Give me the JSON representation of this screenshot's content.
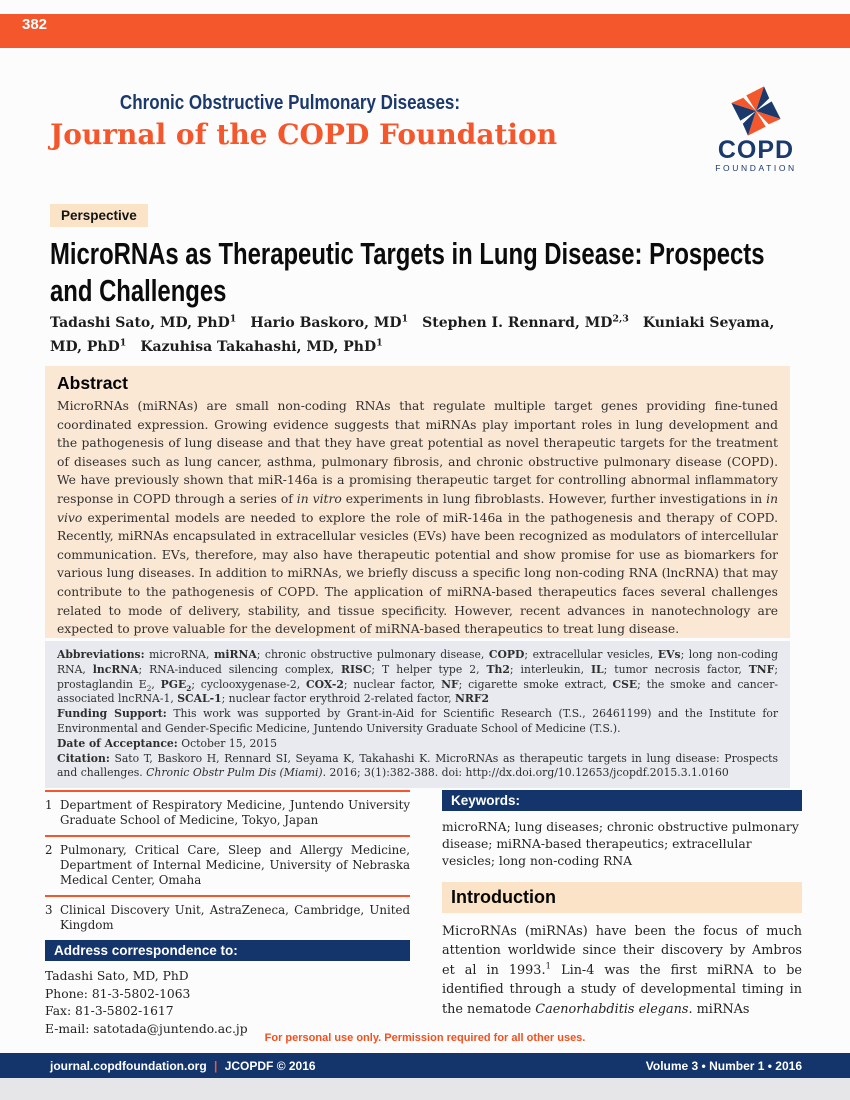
{
  "theme": {
    "orange": "#F4572B",
    "navy": "#1B3A6B",
    "navybar": "#14356B",
    "peach": "#FAE7D4",
    "peach2": "#FAE3C7",
    "metabg": "#E8EAEF",
    "red": "#F2501F"
  },
  "page": {
    "number": "382",
    "permission_notice": "For personal use only. Permission required for all other uses.",
    "footer": {
      "site": "journal.copdfoundation.org",
      "separator": "|",
      "copyright": "JCOPDF © 2016",
      "volume_info": "Volume 3 • Number 1 • 2016"
    }
  },
  "header": {
    "series_title": "Chronic Obstructive Pulmonary Diseases:",
    "journal_title": "Journal of the COPD Foundation",
    "logo": {
      "name": "COPD",
      "subname": "FOUNDATION",
      "icon": "pinwheel-icon"
    }
  },
  "article": {
    "category": "Perspective",
    "title_line1": "MicroRNAs as Therapeutic Targets in Lung Disease: Prospects",
    "title_line2": "and Challenges",
    "authors_rich": [
      {
        "t": "Tadashi Sato, MD, PhD"
      },
      {
        "t": "1",
        "sup": true
      },
      {
        "t": "  "
      },
      {
        "t": "Hario Baskoro, MD"
      },
      {
        "t": "1",
        "sup": true
      },
      {
        "t": "  "
      },
      {
        "t": "Stephen I. Rennard, MD"
      },
      {
        "t": "2,3",
        "sup": true
      },
      {
        "t": "  "
      },
      {
        "t": "Kuniaki Seyama, MD, PhD"
      },
      {
        "t": "1",
        "sup": true
      },
      {
        "t": "  "
      },
      {
        "t": "Kazuhisa Takahashi, MD, PhD"
      },
      {
        "t": "1",
        "sup": true
      }
    ]
  },
  "abstract": {
    "heading": "Abstract",
    "body": [
      {
        "t": "MicroRNAs (miRNAs) are small non-coding RNAs that regulate multiple target genes providing fine-tuned coordinated expression. Growing evidence suggests that miRNAs play important roles in lung development and the pathogenesis of lung disease and that they have great potential as novel therapeutic targets for the treatment of diseases such as lung cancer, asthma, pulmonary fibrosis, and chronic obstructive pulmonary disease (COPD). We have previously shown that miR-146a is a promising therapeutic target for controlling abnormal inflammatory response in COPD through a series of "
      },
      {
        "t": "in vitro",
        "i": true
      },
      {
        "t": " experiments in lung fibroblasts. However, further investigations in "
      },
      {
        "t": "in vivo",
        "i": true
      },
      {
        "t": " experimental models are needed to explore the role of miR-146a in the pathogenesis and therapy of COPD. Recently, miRNAs encapsulated in extracellular vesicles (EVs) have been recognized as modulators of intercellular communication. EVs, therefore, may also have therapeutic potential and show promise for use as biomarkers for various lung diseases. In addition to miRNAs, we briefly discuss a specific long non-coding RNA (lncRNA) that may contribute to the pathogenesis of COPD. The application of miRNA-based therapeutics faces several challenges related to mode of delivery, stability, and tissue specificity. However, recent advances in nanotechnology are expected to prove valuable for the development of miRNA-based therapeutics to treat lung disease."
      }
    ]
  },
  "meta": {
    "abbreviations": [
      {
        "t": "Abbreviations:",
        "b": true
      },
      {
        "t": " microRNA, "
      },
      {
        "t": "miRNA",
        "b": true
      },
      {
        "t": "; chronic obstructive pulmonary disease, "
      },
      {
        "t": "COPD",
        "b": true
      },
      {
        "t": "; extracellular vesicles, "
      },
      {
        "t": "EVs",
        "b": true
      },
      {
        "t": "; long non-coding RNA, "
      },
      {
        "t": "lncRNA",
        "b": true
      },
      {
        "t": "; RNA-induced silencing complex, "
      },
      {
        "t": "RISC",
        "b": true
      },
      {
        "t": "; T helper type 2, "
      },
      {
        "t": "Th2",
        "b": true
      },
      {
        "t": "; interleukin, "
      },
      {
        "t": "IL",
        "b": true
      },
      {
        "t": "; tumor necrosis factor, "
      },
      {
        "t": "TNF",
        "b": true
      },
      {
        "t": "; prostaglandin E"
      },
      {
        "t": "2",
        "sub": true
      },
      {
        "t": ", "
      },
      {
        "t": "PGE",
        "b": true
      },
      {
        "t": "2",
        "b": true,
        "sub": true
      },
      {
        "t": "; cyclooxygenase-2, "
      },
      {
        "t": "COX-2",
        "b": true
      },
      {
        "t": "; nuclear factor, "
      },
      {
        "t": "NF",
        "b": true
      },
      {
        "t": "; cigarette smoke extract, "
      },
      {
        "t": "CSE",
        "b": true
      },
      {
        "t": "; the smoke and cancer-associated lncRNA-1, "
      },
      {
        "t": "SCAL-1",
        "b": true
      },
      {
        "t": "; nuclear factor erythroid 2-related factor, "
      },
      {
        "t": "NRF2",
        "b": true
      }
    ],
    "funding": [
      {
        "t": "Funding Support:",
        "b": true
      },
      {
        "t": " This work was supported by Grant-in-Aid for Scientific Research (T.S., 26461199) and the Institute for Environmental and Gender-Specific Medicine, Juntendo University Graduate School of Medicine (T.S.)."
      }
    ],
    "date_of_acceptance": [
      {
        "t": "Date of Acceptance:",
        "b": true
      },
      {
        "t": " October 15, 2015"
      }
    ],
    "citation": [
      {
        "t": "Citation:",
        "b": true
      },
      {
        "t": " Sato T, Baskoro H, Rennard SI, Seyama K, Takahashi K. MicroRNAs as therapeutic targets in lung disease: Prospects and challenges. "
      },
      {
        "t": "Chronic Obstr Pulm Dis (Miami)",
        "i": true
      },
      {
        "t": ". 2016; 3(1):382-388. doi: http://dx.doi.org/10.12653/jcopdf.2015.3.1.0160"
      }
    ]
  },
  "affiliations": [
    {
      "num": "1",
      "text": "Department of Respiratory Medicine, Juntendo University Graduate School of Medicine, Tokyo, Japan"
    },
    {
      "num": "2",
      "text": "Pulmonary, Critical Care, Sleep and Allergy Medicine, Department of Internal Medicine, University of Nebraska Medical Center, Omaha"
    },
    {
      "num": "3",
      "text": "Clinical Discovery Unit, AstraZeneca, Cambridge, United Kingdom"
    }
  ],
  "correspondence": {
    "heading": "Address correspondence to:",
    "name": "Tadashi Sato, MD, PhD",
    "phone": "Phone: 81-3-5802-1063",
    "fax": "Fax: 81-3-5802-1617",
    "email": "E-mail: satotada@juntendo.ac.jp"
  },
  "keywords": {
    "heading": "Keywords:",
    "text": "microRNA; lung diseases; chronic obstructive pulmonary disease; miRNA-based therapeutics; extracellular vesicles; long non-coding RNA"
  },
  "introduction": {
    "heading": "Introduction",
    "paragraph": [
      {
        "t": "MicroRNAs (miRNAs) have been the focus of much attention worldwide since their discovery by Ambros et al in 1993."
      },
      {
        "t": "1",
        "sup": true
      },
      {
        "t": " Lin-4 was the first miRNA to be identified through a study of developmental timing in the nematode "
      },
      {
        "t": "Caenorhabditis elegans",
        "i": true
      },
      {
        "t": ". miRNAs"
      }
    ]
  }
}
